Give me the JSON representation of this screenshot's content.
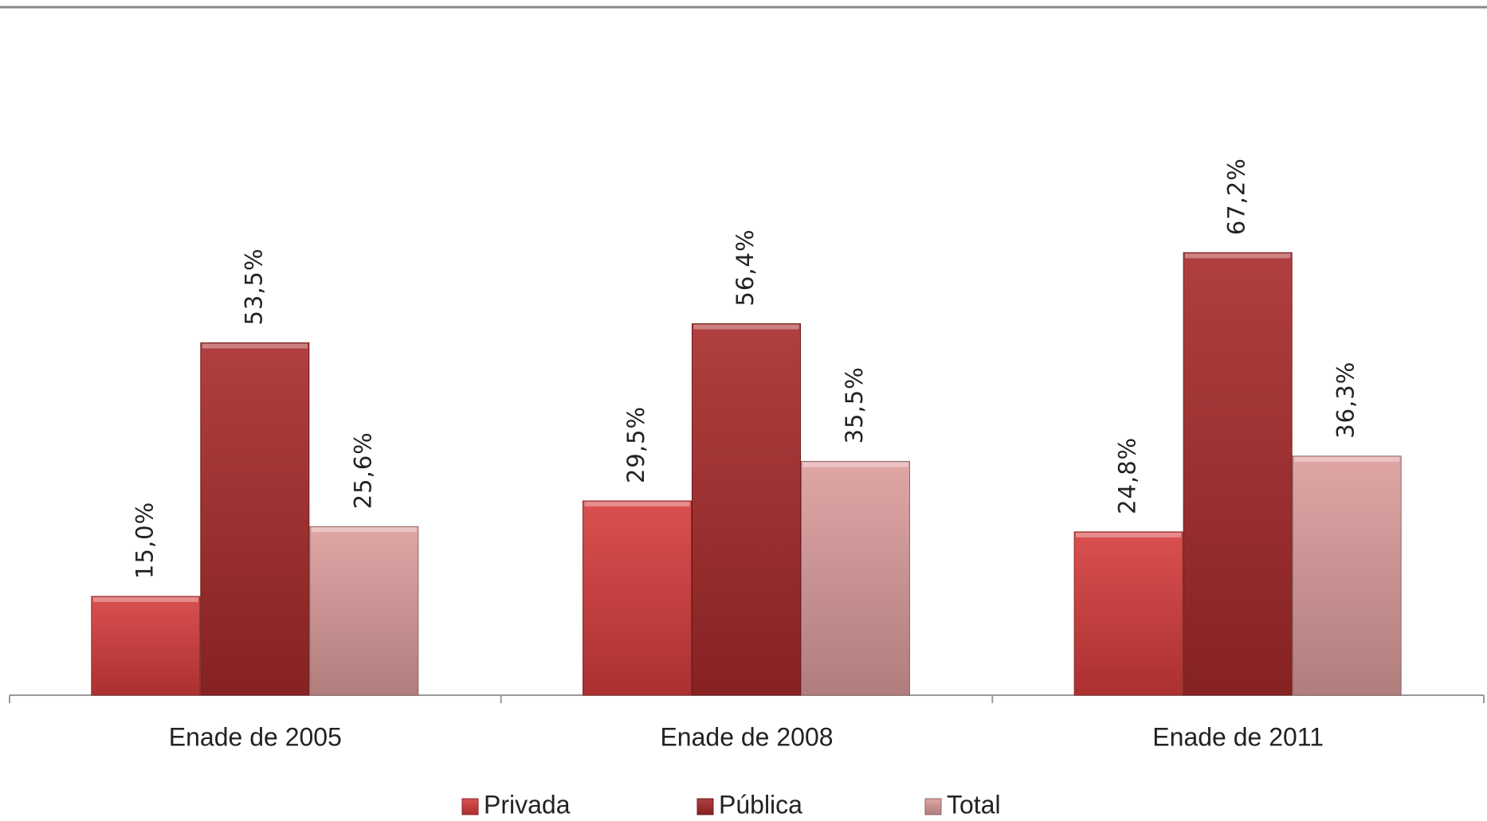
{
  "chart_data": {
    "type": "bar",
    "categories": [
      "Enade de 2005",
      "Enade de 2008",
      "Enade de 2011"
    ],
    "series": [
      {
        "name": "Privada",
        "color": "#d63c3c",
        "values": [
          15.0,
          29.5,
          24.8
        ],
        "value_labels": [
          "15,0%",
          "29,5%",
          "24,8%"
        ]
      },
      {
        "name": "Pública",
        "color": "#a82a2a",
        "values": [
          53.5,
          56.4,
          67.2
        ],
        "value_labels": [
          "53,5%",
          "56,4%",
          "67,2%"
        ]
      },
      {
        "name": "Total",
        "color": "#dc9c9c",
        "values": [
          25.6,
          35.5,
          36.3
        ],
        "value_labels": [
          "25,6%",
          "35,5%",
          "36,3%"
        ]
      }
    ],
    "legend": "bottom"
  }
}
